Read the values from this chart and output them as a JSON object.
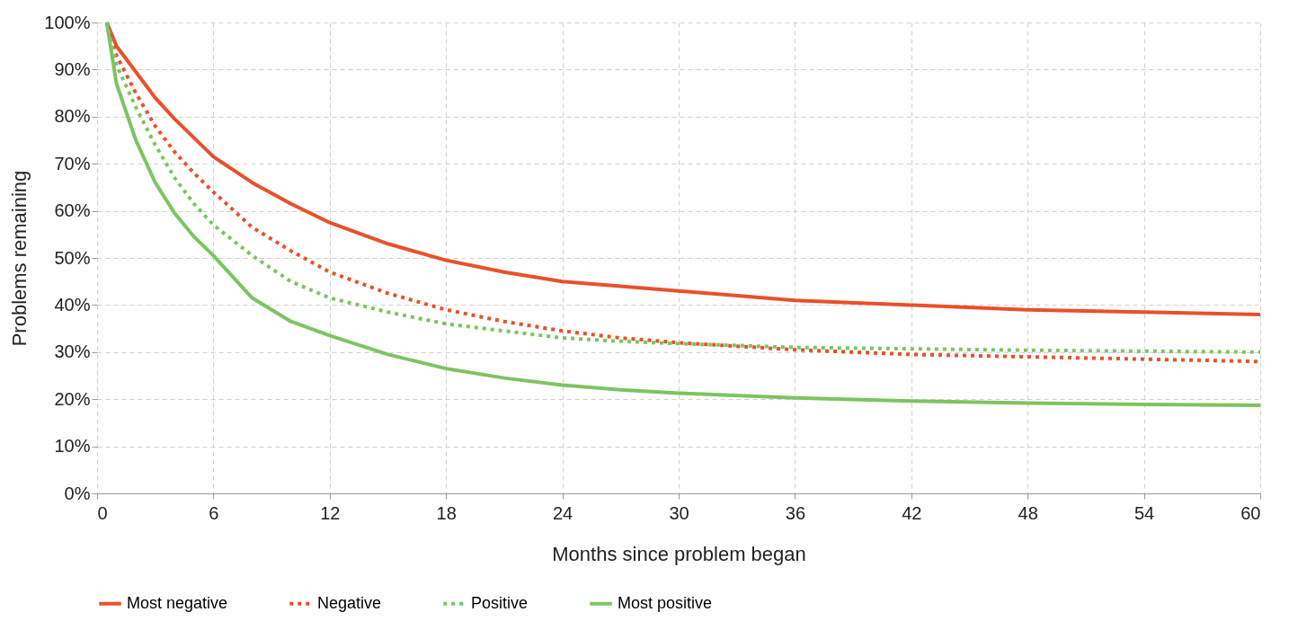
{
  "chart_data": {
    "type": "line",
    "xlabel": "Months since problem began",
    "ylabel": "Problems remaining",
    "xlim": [
      0,
      60
    ],
    "xticks": [
      0,
      6,
      12,
      18,
      24,
      30,
      36,
      42,
      48,
      54,
      60
    ],
    "ylim": [
      0,
      100
    ],
    "yticks": [
      {
        "value": 0,
        "label": "0%"
      },
      {
        "value": 10,
        "label": "10%"
      },
      {
        "value": 20,
        "label": "20%"
      },
      {
        "value": 30,
        "label": "30%"
      },
      {
        "value": 40,
        "label": "40%"
      },
      {
        "value": 50,
        "label": "50%"
      },
      {
        "value": 60,
        "label": "60%"
      },
      {
        "value": 70,
        "label": "70%"
      },
      {
        "value": 80,
        "label": "80%"
      },
      {
        "value": 90,
        "label": "90%"
      },
      {
        "value": 100,
        "label": "100%"
      }
    ],
    "grid": true,
    "legend": "bottom",
    "x": [
      0.5,
      1,
      2,
      3,
      4,
      5,
      6,
      8,
      10,
      12,
      15,
      18,
      21,
      24,
      27,
      30,
      36,
      42,
      48,
      54,
      60
    ],
    "series": [
      {
        "name": "Most negative",
        "color": "#e8512a",
        "line_style": "solid",
        "values": [
          100,
          95,
          89.5,
          84,
          79.5,
          75.5,
          71.5,
          66,
          61.5,
          57.5,
          53,
          49.5,
          47,
          45,
          44,
          43,
          41,
          40,
          39,
          38.5,
          38
        ]
      },
      {
        "name": "Negative",
        "color": "#e8512a",
        "line_style": "dotted",
        "values": [
          100,
          93,
          85,
          78,
          72.5,
          68,
          64,
          56.5,
          51.5,
          47,
          42.5,
          39,
          36.5,
          34.5,
          33,
          32,
          30.5,
          29.5,
          29,
          28.5,
          28
        ]
      },
      {
        "name": "Positive",
        "color": "#7dc462",
        "line_style": "dotted",
        "values": [
          100,
          91,
          82,
          74,
          67,
          61.5,
          57,
          50.5,
          45,
          41.5,
          38.5,
          36,
          34.5,
          33,
          32.3,
          31.8,
          31,
          30.7,
          30.4,
          30.2,
          30
        ]
      },
      {
        "name": "Most positive",
        "color": "#7dc462",
        "line_style": "solid",
        "values": [
          100,
          87,
          75,
          66,
          59.5,
          54.5,
          50.5,
          41.5,
          36.5,
          33.5,
          29.5,
          26.5,
          24.5,
          23,
          22,
          21.3,
          20.3,
          19.6,
          19.2,
          18.9,
          18.7
        ]
      }
    ]
  }
}
